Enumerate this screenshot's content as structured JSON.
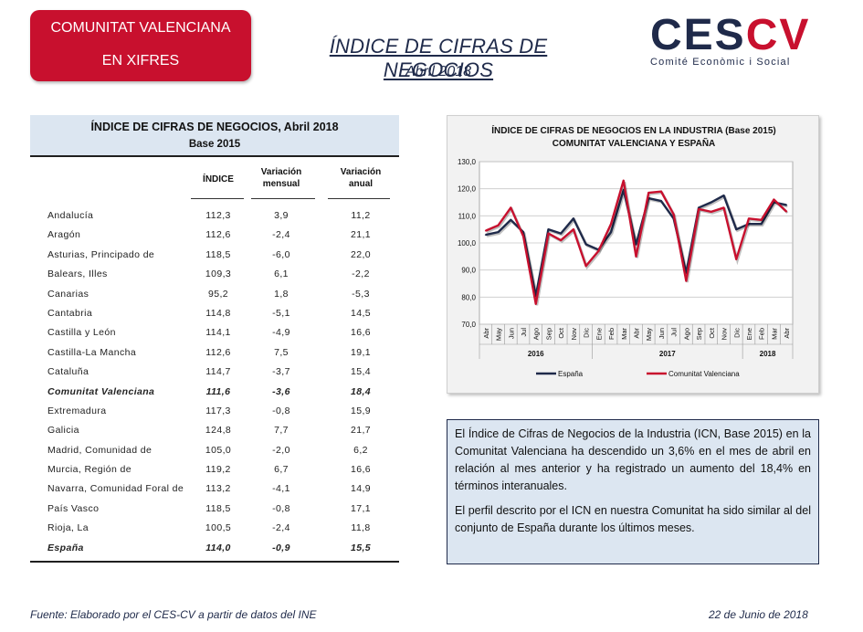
{
  "badge": {
    "line1": "COMUNITAT VALENCIANA",
    "line2": "EN XIFRES"
  },
  "header": {
    "title": "ÍNDICE DE CIFRAS DE NEGOCIOS",
    "subtitle": "Abril 2018"
  },
  "logo": {
    "part1": "CES",
    "part2": "CV",
    "tagline": "Comité Econòmic i Social",
    "color_primary": "#1f2a4a",
    "color_accent": "#c8102e"
  },
  "table": {
    "title": "ÍNDICE DE CIFRAS DE NEGOCIOS, Abril 2018",
    "subtitle": "Base 2015",
    "col_index": "ÍNDICE",
    "col_monthly_1": "Variación",
    "col_monthly_2": "mensual",
    "col_annual_1": "Variación",
    "col_annual_2": "anual",
    "rows": [
      {
        "name": "Andalucía",
        "index": "112,3",
        "monthly": "3,9",
        "annual": "11,2",
        "emphasis": false
      },
      {
        "name": "Aragón",
        "index": "112,6",
        "monthly": "-2,4",
        "annual": "21,1",
        "emphasis": false
      },
      {
        "name": "Asturias, Principado de",
        "index": "118,5",
        "monthly": "-6,0",
        "annual": "22,0",
        "emphasis": false
      },
      {
        "name": "Balears, Illes",
        "index": "109,3",
        "monthly": "6,1",
        "annual": "-2,2",
        "emphasis": false
      },
      {
        "name": "Canarias",
        "index": "95,2",
        "monthly": "1,8",
        "annual": "-5,3",
        "emphasis": false
      },
      {
        "name": "Cantabria",
        "index": "114,8",
        "monthly": "-5,1",
        "annual": "14,5",
        "emphasis": false
      },
      {
        "name": "Castilla y León",
        "index": "114,1",
        "monthly": "-4,9",
        "annual": "16,6",
        "emphasis": false
      },
      {
        "name": "Castilla-La Mancha",
        "index": "112,6",
        "monthly": "7,5",
        "annual": "19,1",
        "emphasis": false
      },
      {
        "name": "Cataluña",
        "index": "114,7",
        "monthly": "-3,7",
        "annual": "15,4",
        "emphasis": false
      },
      {
        "name": "Comunitat Valenciana",
        "index": "111,6",
        "monthly": "-3,6",
        "annual": "18,4",
        "emphasis": true
      },
      {
        "name": "Extremadura",
        "index": "117,3",
        "monthly": "-0,8",
        "annual": "15,9",
        "emphasis": false
      },
      {
        "name": "Galicia",
        "index": "124,8",
        "monthly": "7,7",
        "annual": "21,7",
        "emphasis": false
      },
      {
        "name": "Madrid, Comunidad de",
        "index": "105,0",
        "monthly": "-2,0",
        "annual": "6,2",
        "emphasis": false
      },
      {
        "name": "Murcia, Región de",
        "index": "119,2",
        "monthly": "6,7",
        "annual": "16,6",
        "emphasis": false
      },
      {
        "name": "Navarra, Comunidad Foral de",
        "index": "113,2",
        "monthly": "-4,1",
        "annual": "14,9",
        "emphasis": false
      },
      {
        "name": "País Vasco",
        "index": "118,5",
        "monthly": "-0,8",
        "annual": "17,1",
        "emphasis": false
      },
      {
        "name": "Rioja, La",
        "index": "100,5",
        "monthly": "-2,4",
        "annual": "11,8",
        "emphasis": false
      },
      {
        "name": "España",
        "index": "114,0",
        "monthly": "-0,9",
        "annual": "15,5",
        "emphasis": true
      }
    ]
  },
  "chart_data": {
    "type": "line",
    "title": "ÍNDICE DE CIFRAS DE NEGOCIOS EN LA INDUSTRIA (Base 2015)",
    "subtitle": "COMUNITAT VALENCIANA Y ESPAÑA",
    "categories": [
      "Abr",
      "May",
      "Jun",
      "Jul",
      "Ago",
      "Sep",
      "Oct",
      "Nov",
      "Dic",
      "Ene",
      "Feb",
      "Mar",
      "Abr",
      "May",
      "Jun",
      "Jul",
      "Ago",
      "Sep",
      "Oct",
      "Nov",
      "Dic",
      "Ene",
      "Feb",
      "Mar",
      "Abr"
    ],
    "years": [
      {
        "label": "2016",
        "start": 0,
        "end": 8
      },
      {
        "label": "2017",
        "start": 9,
        "end": 20
      },
      {
        "label": "2018",
        "start": 21,
        "end": 24
      }
    ],
    "yticks": [
      "130,0",
      "120,0",
      "110,0",
      "100,0",
      "90,0",
      "80,0",
      "70,0"
    ],
    "ylim": [
      70,
      130
    ],
    "grid": true,
    "legend": "bottom",
    "series": [
      {
        "name": "España",
        "color": "#1f2a4a",
        "values": [
          103.0,
          104.0,
          108.5,
          104.0,
          80.5,
          105.0,
          103.5,
          109.0,
          99.5,
          97.5,
          104.0,
          119.5,
          99.5,
          116.5,
          115.5,
          109.0,
          89.0,
          113.0,
          115.0,
          117.5,
          105.0,
          107.0,
          107.0,
          115.0,
          114.0
        ]
      },
      {
        "name": "Comunitat Valenciana",
        "color": "#c8102e",
        "values": [
          104.5,
          106.5,
          113.0,
          102.5,
          77.5,
          103.5,
          101.0,
          105.0,
          91.5,
          97.0,
          107.0,
          123.0,
          95.0,
          118.5,
          119.0,
          110.5,
          86.0,
          112.5,
          111.5,
          113.0,
          94.0,
          109.0,
          108.5,
          116.0,
          111.6
        ]
      }
    ]
  },
  "textbox": {
    "p1": "El Índice de Cifras de Negocios de la Industria (ICN, Base 2015) en la Comunitat Valenciana ha descendido un 3,6% en el mes de abril en relación al mes anterior y ha registrado un aumento del 18,4% en términos interanuales.",
    "p2": "El perfil descrito por el ICN en nuestra Comunitat ha sido similar al del conjunto de España durante los últimos meses."
  },
  "footer": {
    "source": "Fuente: Elaborado por el CES-CV a partir de datos del INE",
    "date": "22 de Junio de 2018"
  }
}
